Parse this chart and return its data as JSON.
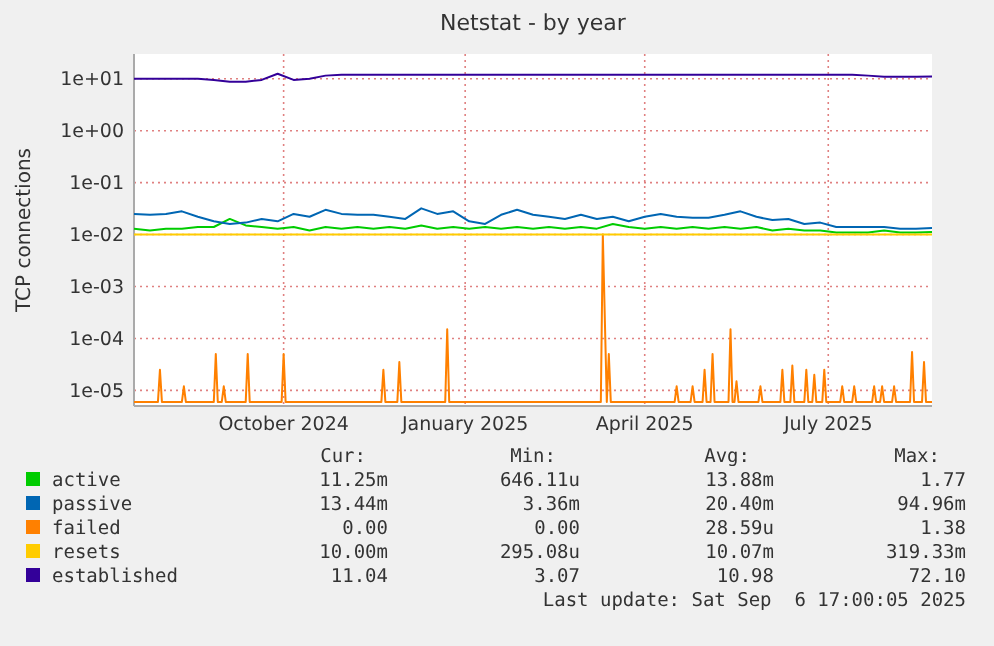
{
  "chart_data": {
    "type": "line",
    "title": "Netstat - by year",
    "ylabel": "TCP connections",
    "log": true,
    "grid": true,
    "legend": "bottom",
    "line_style": "solid",
    "xlim": [
      "2024-08-02",
      "2025-09-06"
    ],
    "xticks": [
      {
        "value": "2024-10-16",
        "label": "October 2024"
      },
      {
        "value": "2025-01-15",
        "label": "January 2025"
      },
      {
        "value": "2025-04-15",
        "label": "April 2025"
      },
      {
        "value": "2025-07-16",
        "label": "July 2025"
      }
    ],
    "ylim": [
      5e-06,
      30
    ],
    "yticks": [
      {
        "value": 10,
        "label": "1e+01"
      },
      {
        "value": 1,
        "label": "1e+00"
      },
      {
        "value": 0.1,
        "label": "1e-01"
      },
      {
        "value": 0.01,
        "label": "1e-02"
      },
      {
        "value": 0.001,
        "label": "1e-03"
      },
      {
        "value": 0.0001,
        "label": "1e-04"
      },
      {
        "value": 1e-05,
        "label": "1e-05"
      }
    ],
    "x": [
      "2024-08-02",
      "2024-08-10",
      "2024-08-18",
      "2024-08-26",
      "2024-09-03",
      "2024-09-11",
      "2024-09-19",
      "2024-09-27",
      "2024-10-05",
      "2024-10-13",
      "2024-10-21",
      "2024-10-29",
      "2024-11-06",
      "2024-11-14",
      "2024-11-22",
      "2024-11-30",
      "2024-12-08",
      "2024-12-16",
      "2024-12-24",
      "2025-01-01",
      "2025-01-09",
      "2025-01-17",
      "2025-01-25",
      "2025-02-02",
      "2025-02-10",
      "2025-02-18",
      "2025-02-26",
      "2025-03-06",
      "2025-03-14",
      "2025-03-22",
      "2025-03-30",
      "2025-04-07",
      "2025-04-15",
      "2025-04-23",
      "2025-05-01",
      "2025-05-09",
      "2025-05-17",
      "2025-05-25",
      "2025-06-02",
      "2025-06-10",
      "2025-06-18",
      "2025-06-26",
      "2025-07-04",
      "2025-07-12",
      "2025-07-20",
      "2025-07-28",
      "2025-08-05",
      "2025-08-13",
      "2025-08-21",
      "2025-08-29",
      "2025-09-06"
    ],
    "series": [
      {
        "name": "active",
        "color": "#00cc00",
        "values": [
          0.013,
          0.012,
          0.013,
          0.013,
          0.014,
          0.014,
          0.02,
          0.015,
          0.014,
          0.013,
          0.014,
          0.012,
          0.014,
          0.013,
          0.014,
          0.013,
          0.014,
          0.013,
          0.015,
          0.013,
          0.014,
          0.013,
          0.014,
          0.013,
          0.014,
          0.013,
          0.014,
          0.013,
          0.014,
          0.013,
          0.016,
          0.014,
          0.013,
          0.014,
          0.013,
          0.014,
          0.013,
          0.014,
          0.013,
          0.014,
          0.012,
          0.013,
          0.012,
          0.012,
          0.011,
          0.011,
          0.011,
          0.012,
          0.011,
          0.011,
          0.01125
        ]
      },
      {
        "name": "passive",
        "color": "#0066b3",
        "values": [
          0.025,
          0.024,
          0.025,
          0.028,
          0.022,
          0.018,
          0.016,
          0.017,
          0.02,
          0.018,
          0.025,
          0.022,
          0.03,
          0.025,
          0.024,
          0.024,
          0.022,
          0.02,
          0.032,
          0.025,
          0.028,
          0.018,
          0.016,
          0.024,
          0.03,
          0.024,
          0.022,
          0.02,
          0.024,
          0.02,
          0.022,
          0.018,
          0.022,
          0.025,
          0.022,
          0.021,
          0.021,
          0.024,
          0.028,
          0.022,
          0.019,
          0.02,
          0.016,
          0.017,
          0.014,
          0.014,
          0.014,
          0.014,
          0.013,
          0.013,
          0.0134
        ]
      },
      {
        "name": "failed",
        "color": "#ff8000",
        "x": [
          "2024-08-02",
          "2024-08-14",
          "2024-08-15",
          "2024-08-16",
          "2024-08-26",
          "2024-08-27",
          "2024-08-28",
          "2024-09-11",
          "2024-09-12",
          "2024-09-13",
          "2024-09-15",
          "2024-09-16",
          "2024-09-17",
          "2024-09-27",
          "2024-09-28",
          "2024-09-29",
          "2024-10-15",
          "2024-10-16",
          "2024-10-17",
          "2024-12-04",
          "2024-12-05",
          "2024-12-06",
          "2024-12-12",
          "2024-12-13",
          "2024-12-14",
          "2025-01-05",
          "2025-01-06",
          "2025-01-07",
          "2025-03-24",
          "2025-03-25",
          "2025-03-27",
          "2025-03-28",
          "2025-03-29",
          "2025-04-30",
          "2025-05-01",
          "2025-05-02",
          "2025-05-08",
          "2025-05-09",
          "2025-05-10",
          "2025-05-14",
          "2025-05-15",
          "2025-05-16",
          "2025-05-18",
          "2025-05-19",
          "2025-05-20",
          "2025-05-27",
          "2025-05-28",
          "2025-05-29",
          "2025-05-30",
          "2025-05-31",
          "2025-06-01",
          "2025-06-11",
          "2025-06-12",
          "2025-06-13",
          "2025-06-22",
          "2025-06-23",
          "2025-06-24",
          "2025-06-27",
          "2025-06-28",
          "2025-06-29",
          "2025-07-04",
          "2025-07-05",
          "2025-07-06",
          "2025-07-08",
          "2025-07-09",
          "2025-07-10",
          "2025-07-13",
          "2025-07-14",
          "2025-07-15",
          "2025-07-22",
          "2025-07-23",
          "2025-07-24",
          "2025-07-28",
          "2025-07-29",
          "2025-07-30",
          "2025-08-07",
          "2025-08-08",
          "2025-08-09",
          "2025-08-11",
          "2025-08-12",
          "2025-08-13",
          "2025-08-17",
          "2025-08-18",
          "2025-08-19",
          "2025-08-26",
          "2025-08-27",
          "2025-08-28",
          "2025-09-01",
          "2025-09-02",
          "2025-09-03",
          "2025-09-06"
        ],
        "values": [
          6e-06,
          6e-06,
          2.5e-05,
          6e-06,
          6e-06,
          1.2e-05,
          6e-06,
          6e-06,
          5e-05,
          6e-06,
          6e-06,
          1.2e-05,
          6e-06,
          6e-06,
          5e-05,
          6e-06,
          6e-06,
          5e-05,
          6e-06,
          6e-06,
          2.5e-05,
          6e-06,
          6e-06,
          3.5e-05,
          6e-06,
          6e-06,
          0.00015,
          6e-06,
          6e-06,
          0.01,
          6e-06,
          5e-05,
          6e-06,
          6e-06,
          1.2e-05,
          6e-06,
          6e-06,
          1.2e-05,
          6e-06,
          6e-06,
          2.5e-05,
          6e-06,
          6e-06,
          5e-05,
          6e-06,
          6e-06,
          0.00015,
          6e-06,
          6e-06,
          1.5e-05,
          6e-06,
          6e-06,
          1.2e-05,
          6e-06,
          6e-06,
          2.5e-05,
          6e-06,
          6e-06,
          3e-05,
          6e-06,
          6e-06,
          2.5e-05,
          6e-06,
          6e-06,
          2e-05,
          6e-06,
          6e-06,
          2.5e-05,
          6e-06,
          6e-06,
          1.2e-05,
          6e-06,
          6e-06,
          1.2e-05,
          6e-06,
          6e-06,
          1.2e-05,
          6e-06,
          6e-06,
          1.2e-05,
          6e-06,
          6e-06,
          1.2e-05,
          6e-06,
          6e-06,
          5.5e-05,
          6e-06,
          6e-06,
          3.5e-05,
          6e-06,
          6e-06
        ]
      },
      {
        "name": "resets",
        "color": "#ffcc00",
        "values": [
          0.01,
          0.01,
          0.01,
          0.01,
          0.01,
          0.01,
          0.01,
          0.01,
          0.01,
          0.01,
          0.01,
          0.01,
          0.01,
          0.01,
          0.01,
          0.01,
          0.01,
          0.01,
          0.01,
          0.01,
          0.01,
          0.01,
          0.01,
          0.01,
          0.01,
          0.01,
          0.01,
          0.01,
          0.01,
          0.01,
          0.01,
          0.01,
          0.01,
          0.01,
          0.01,
          0.01,
          0.01,
          0.01,
          0.01,
          0.01,
          0.01,
          0.01,
          0.01,
          0.01,
          0.01,
          0.01,
          0.01,
          0.01,
          0.01,
          0.01,
          0.01
        ]
      },
      {
        "name": "established",
        "color": "#330099",
        "values": [
          10,
          10,
          10,
          10,
          10,
          9.5,
          8.8,
          8.8,
          9.5,
          12.5,
          9.5,
          10,
          11.5,
          12,
          12,
          12,
          12,
          12,
          12,
          12,
          12,
          12,
          12,
          12,
          12,
          12,
          12,
          12,
          12,
          12,
          12,
          12,
          12,
          12,
          12,
          12,
          12,
          12,
          12,
          12,
          12,
          12,
          12,
          12,
          12,
          12,
          11.5,
          11,
          11,
          11,
          11.04
        ]
      }
    ],
    "annotations": [
      "Cur:",
      "Min:",
      "Avg:",
      "Max:",
      "11.25m",
      "646.11u",
      "13.88m",
      "1.77",
      "13.44m",
      "3.36m",
      "20.40m",
      "94.96m",
      "0.00",
      "0.00",
      "28.59u",
      "1.38",
      "10.00m",
      "295.08u",
      "10.07m",
      "319.33m",
      "11.04",
      "3.07",
      "10.98",
      "72.10",
      "Last update: Sat Sep  6 17:00:05 2025"
    ]
  }
}
